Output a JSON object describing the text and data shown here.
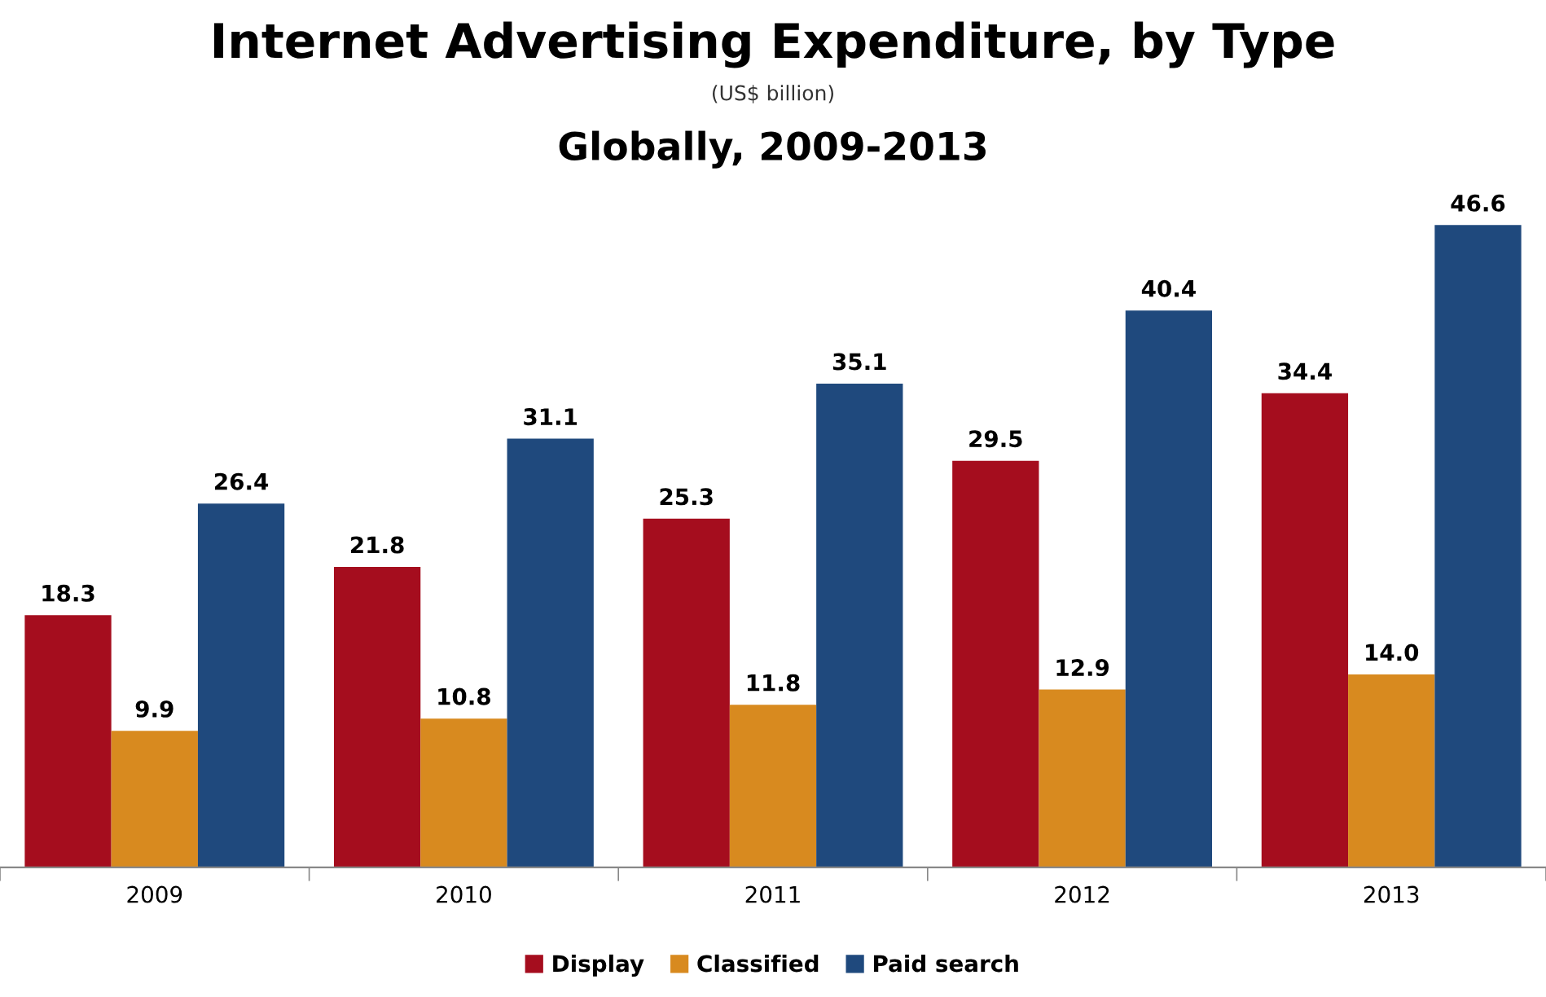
{
  "chart_data": {
    "type": "bar",
    "title": "Internet Advertising Expenditure, by Type",
    "subtitle": "(US$ billion)",
    "annotations": [
      "Globally, 2009-2013"
    ],
    "categories": [
      "2009",
      "2010",
      "2011",
      "2012",
      "2013"
    ],
    "series": [
      {
        "name": "Display",
        "color": "#a50d1e",
        "values": [
          18.3,
          21.8,
          25.3,
          29.5,
          34.4
        ],
        "value_labels": [
          "18.3",
          "21.8",
          "25.3",
          "29.5",
          "34.4"
        ]
      },
      {
        "name": "Classified",
        "color": "#d88a1f",
        "values": [
          9.9,
          10.8,
          11.8,
          12.9,
          14.0
        ],
        "value_labels": [
          "9.9",
          "10.8",
          "11.8",
          "12.9",
          "14.0"
        ]
      },
      {
        "name": "Paid search",
        "color": "#1f497d",
        "values": [
          26.4,
          31.1,
          35.1,
          40.4,
          46.6
        ],
        "value_labels": [
          "26.4",
          "31.1",
          "35.1",
          "40.4",
          "46.6"
        ]
      }
    ],
    "legend": "bottom",
    "grid": false
  }
}
